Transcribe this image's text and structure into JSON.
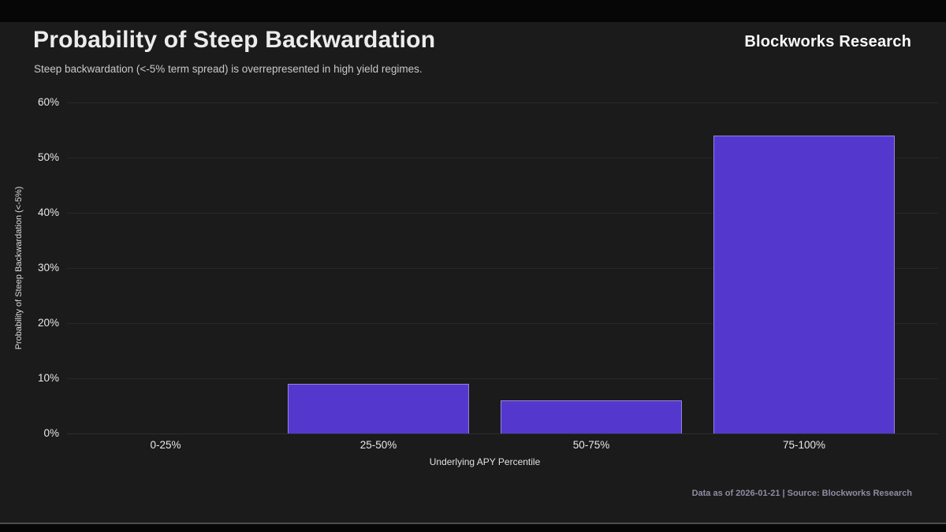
{
  "header": {
    "title": "Probability of Steep Backwardation",
    "subtitle": "Steep backwardation (<-5% term spread) is overrepresented in high yield regimes.",
    "brand": "Blockworks Research"
  },
  "footer": {
    "note": "Data as of 2026-01-21 | Source: Blockworks Research"
  },
  "chart_data": {
    "type": "bar",
    "title": "Probability of Steep Backwardation",
    "subtitle": "Steep backwardation (<-5% term spread) is overrepresented in high yield regimes.",
    "categories": [
      "0-25%",
      "25-50%",
      "50-75%",
      "75-100%"
    ],
    "values": [
      0,
      9,
      6,
      54
    ],
    "unit": "%",
    "xlabel": "Underlying APY Percentile",
    "ylabel": "Probability of Steep Backwardation (<-5%)",
    "ylim": [
      0,
      60
    ],
    "yticks": [
      0,
      10,
      20,
      30,
      40,
      50,
      60
    ],
    "ytick_labels": [
      "0%",
      "10%",
      "20%",
      "30%",
      "40%",
      "50%",
      "60%"
    ],
    "grid": "horizontal",
    "legend": "none",
    "bar_color": "#5438ce",
    "background": "#1b1b1b"
  },
  "theme": {
    "letterbox": "#060606",
    "canvas_bg": "#1b1b1b",
    "gridline": "#282828",
    "title_color": "#ececec",
    "footer_color": "#8f8ca0"
  }
}
